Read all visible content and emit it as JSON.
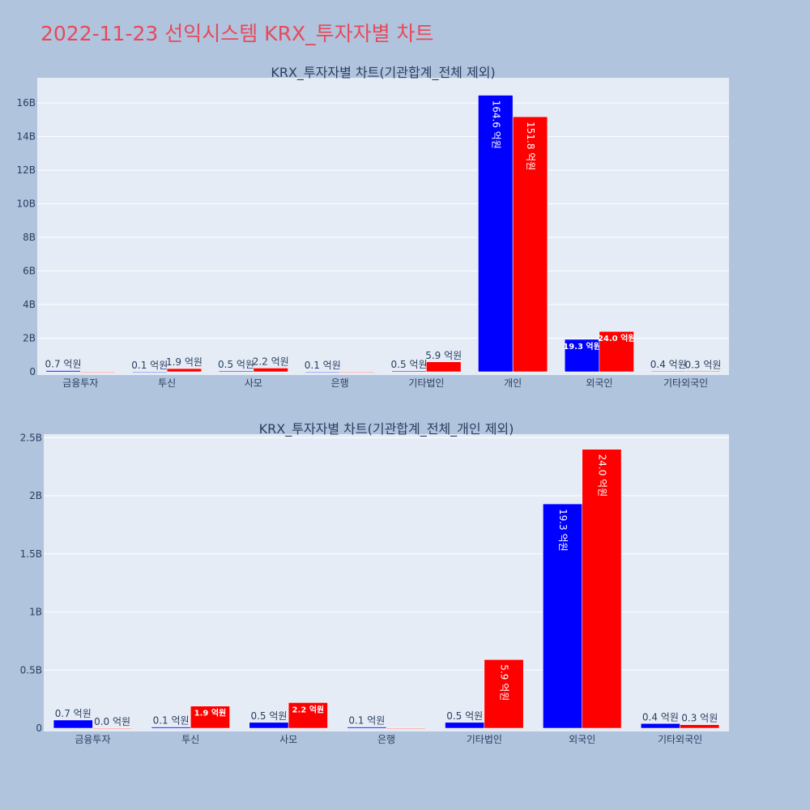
{
  "page": {
    "title": "2022-11-23 선익시스템 KRX_투자자별 차트"
  },
  "chart_data": [
    {
      "type": "bar",
      "title": "KRX_투자자별 차트(기관합계_전체 제외)",
      "categories": [
        "금융투자",
        "투신",
        "사모",
        "은행",
        "기타법인",
        "개인",
        "외국인",
        "기타외국인"
      ],
      "series": [
        {
          "values": [
            70000000,
            10000000,
            50000000,
            10000000,
            50000000,
            16460000000,
            1930000000,
            40000000
          ],
          "labels": [
            "0.7 억원",
            "0.1 억원",
            "0.5 억원",
            "0.1 억원",
            "0.5 억원",
            "164.6 억원",
            "19.3 억원",
            "0.4 억원"
          ],
          "color": "#0000ff"
        },
        {
          "values": [
            0,
            190000000,
            220000000,
            0,
            590000000,
            15180000000,
            2400000000,
            30000000
          ],
          "labels": [
            "",
            "1.9 억원",
            "2.2 억원",
            "",
            "5.9 억원",
            "151.8 억원",
            "24.0 억원",
            "0.3 억원"
          ],
          "color": "#ff0000"
        }
      ],
      "ylim": [
        0,
        17500000000
      ],
      "yticks": [
        0,
        2000000000,
        4000000000,
        6000000000,
        8000000000,
        10000000000,
        12000000000,
        14000000000,
        16000000000
      ],
      "yticklabels": [
        "0",
        "2B",
        "4B",
        "6B",
        "8B",
        "10B",
        "12B",
        "14B",
        "16B"
      ],
      "grid": true
    },
    {
      "type": "bar",
      "title": "KRX_투자자별 차트(기관합계_전체_개인 제외)",
      "categories": [
        "금융투자",
        "투신",
        "사모",
        "은행",
        "기타법인",
        "외국인",
        "기타외국인"
      ],
      "series": [
        {
          "values": [
            70000000,
            10000000,
            50000000,
            10000000,
            50000000,
            1930000000,
            40000000
          ],
          "labels": [
            "0.7 억원",
            "0.1 억원",
            "0.5 억원",
            "0.1 억원",
            "0.5 억원",
            "19.3 억원",
            "0.4 억원"
          ],
          "color": "#0000ff"
        },
        {
          "values": [
            0,
            190000000,
            220000000,
            0,
            590000000,
            2400000000,
            30000000
          ],
          "labels": [
            "0.0 억원",
            "1.9 억원",
            "2.2 억원",
            "",
            "5.9 억원",
            "24.0 억원",
            "0.3 억원"
          ],
          "color": "#ff0000"
        }
      ],
      "ylim": [
        0,
        2530000000
      ],
      "yticks": [
        0,
        500000000,
        1000000000,
        1500000000,
        2000000000,
        2500000000
      ],
      "yticklabels": [
        "0",
        "0.5B",
        "1B",
        "1.5B",
        "2B",
        "2.5B"
      ],
      "grid": true
    }
  ]
}
